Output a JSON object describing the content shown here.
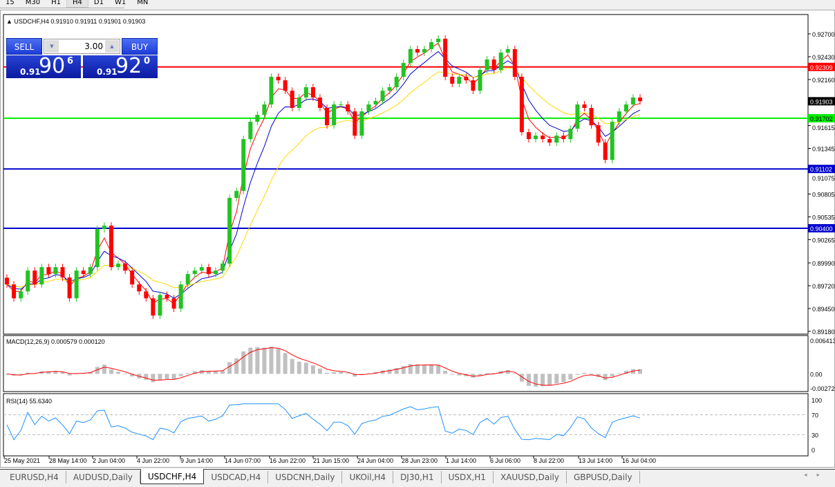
{
  "toolbar": {
    "timeframes": [
      "15",
      "M30",
      "H1",
      "H4",
      "D1",
      "W1",
      "MN"
    ],
    "active": "H4"
  },
  "chart": {
    "header": "USDCHF,H4  0.91910 0.91911 0.91901 0.91903",
    "symbol": "USDCHF",
    "timeframe": "H4",
    "trade_panel": {
      "sell_label": "SELL",
      "buy_label": "BUY",
      "lots": "3.00",
      "sell_prefix": "0.91",
      "sell_big": "90",
      "sell_sup": "6",
      "buy_prefix": "0.91",
      "buy_big": "92",
      "buy_sup": "0"
    },
    "colors": {
      "up": "#22c322",
      "down": "#ff0000",
      "ma_fast": "#ff0000",
      "ma_mid": "#0000cc",
      "ma_slow": "#ffd700",
      "bid_label": "#000000"
    }
  },
  "chart_data": [
    {
      "type": "candlestick",
      "name": "USDCHF,H4",
      "ylim": [
        0.8918,
        0.927
      ],
      "yticks": [
        "0.92700",
        "0.92430",
        "0.92160",
        "0.91615",
        "0.91345",
        "0.91075",
        "0.90805",
        "0.90535",
        "0.90265",
        "0.89990",
        "0.89720",
        "0.89450",
        "0.89180"
      ],
      "xticks": [
        "25 May 2021",
        "28 May 14:00",
        "2 Jun 04:00",
        "4 Jun 22:00",
        "9 Jun 14:00",
        "14 Jun 07:00",
        "16 Jun 22:00",
        "21 Jun 15:00",
        "24 Jun 04:00",
        "28 Jun 23:00",
        "1 Jul 14:00",
        "6 Jul 06:00",
        "8 Jul 22:00",
        "13 Jul 14:00",
        "16 Jul 04:00"
      ],
      "closes": [
        0.89735,
        0.89571,
        0.89653,
        0.89899,
        0.89735,
        0.8994,
        0.89858,
        0.8994,
        0.89817,
        0.89571,
        0.89899,
        0.89858,
        0.8994,
        0.9039,
        0.90431,
        0.8994,
        0.89981,
        0.89899,
        0.89735,
        0.89653,
        0.89571,
        0.89367,
        0.89612,
        0.89571,
        0.89449,
        0.89735,
        0.89858,
        0.89899,
        0.8994,
        0.89858,
        0.89899,
        0.89981,
        0.90759,
        0.90841,
        0.91455,
        0.9166,
        0.91742,
        0.91865,
        0.92192,
        0.92151,
        0.92028,
        0.91824,
        0.91947,
        0.92069,
        0.91947,
        0.91824,
        0.91619,
        0.91865,
        0.91865,
        0.91783,
        0.91496,
        0.91783,
        0.91865,
        0.91906,
        0.92028,
        0.92069,
        0.92192,
        0.92356,
        0.9252,
        0.92479,
        0.9252,
        0.92602,
        0.92643,
        0.92192,
        0.9211,
        0.92192,
        0.92151,
        0.92028,
        0.92274,
        0.92397,
        0.92274,
        0.92479,
        0.9252,
        0.92192,
        0.91537,
        0.91455,
        0.91496,
        0.91455,
        0.91414,
        0.91496,
        0.91455,
        0.91578,
        0.91865,
        0.91824,
        0.91619,
        0.91414,
        0.91209,
        0.9166,
        0.91783,
        0.91865,
        0.91947,
        0.91903
      ],
      "hlines": [
        {
          "price": "0.92309",
          "color": "#ff0000"
        },
        {
          "price": "0.91702",
          "color": "#00ee00"
        },
        {
          "price": "0.91102",
          "color": "#0000cc"
        },
        {
          "price": "0.90400",
          "color": "#0000cc"
        }
      ],
      "bid": "0.91903"
    },
    {
      "type": "histogram+line",
      "title": "MACD(12,26,9) 0.000579 0.000120",
      "yticks": [
        "0.006413",
        "0.00",
        "-0.002720"
      ],
      "ylim": [
        -0.00272,
        0.006413
      ]
    },
    {
      "type": "line",
      "title": "RSI(14) 55.6340",
      "yticks": [
        "100",
        "70",
        "30",
        "0"
      ],
      "ylim": [
        0,
        100
      ],
      "levels": [
        70,
        30
      ]
    }
  ],
  "tabs": [
    "EURUSD,H4",
    "AUDUSD,Daily",
    "USDCHF,H4",
    "USDCAD,H4",
    "USDCNH,Daily",
    "UKOil,H4",
    "DJ30,H1",
    "USDX,H1",
    "XAUUSD,Daily",
    "GBPUSD,Daily"
  ],
  "active_tab": "USDCHF,H4"
}
